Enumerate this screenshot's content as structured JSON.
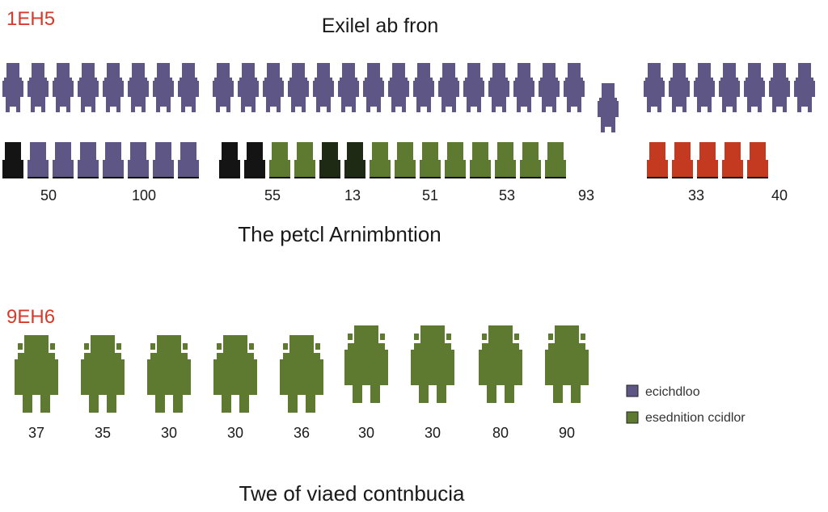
{
  "colors": {
    "purple": "#5e5685",
    "black": "#141414",
    "dark_green": "#1f2a14",
    "green": "#5e7a30",
    "red": "#c43a20",
    "code_red": "#d63a2a"
  },
  "chart_data": [
    {
      "type": "pictograph",
      "code": "1EH5",
      "title": "Exilel ab fron",
      "caption": "The petcl Arnimbntion",
      "top_row": {
        "groups": [
          {
            "count": 8,
            "color": "purple"
          },
          {
            "count": 15,
            "color": "purple"
          },
          {
            "count": 1,
            "color": "purple"
          },
          {
            "count": 7,
            "color": "purple"
          }
        ]
      },
      "bottom_row": {
        "groups": [
          {
            "colors": [
              "black",
              "purple",
              "purple",
              "purple",
              "purple",
              "purple",
              "purple",
              "purple"
            ]
          },
          {
            "colors": [
              "black",
              "black",
              "green",
              "green",
              "dark_green",
              "dark_green",
              "green",
              "green",
              "green",
              "green",
              "green",
              "green",
              "green",
              "green"
            ]
          },
          {
            "colors": [
              "red",
              "red",
              "red",
              "red",
              "red"
            ]
          }
        ]
      },
      "value_labels": [
        "50",
        "100",
        "55",
        "13",
        "51",
        "53",
        "93",
        "33",
        "40"
      ]
    },
    {
      "type": "pictograph",
      "code": "9EH6",
      "caption": "Twe of viaed contnbucia",
      "values": [
        37,
        35,
        30,
        30,
        36,
        30,
        30,
        80,
        90
      ],
      "value_labels": [
        "37",
        "35",
        "30",
        "30",
        "36",
        "30",
        "30",
        "80",
        "90"
      ],
      "legend": [
        {
          "label": "ecichdloo",
          "color": "purple"
        },
        {
          "label": "esednition ccidlor",
          "color": "green"
        }
      ]
    }
  ]
}
